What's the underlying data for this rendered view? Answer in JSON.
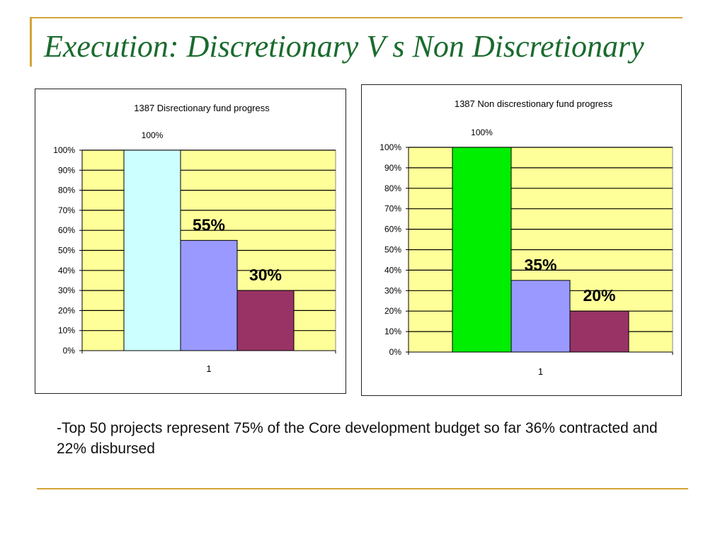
{
  "slide": {
    "title": "Execution: Discretionary V s Non Discretionary",
    "footnote": "-Top 50 projects represent 75% of the Core development budget so far 36% contracted and 22% disbursed"
  },
  "colors": {
    "accent_line": "#d4a437",
    "title_text": "#1a6b2e",
    "plot_background": "#ffff99"
  },
  "chart_data": [
    {
      "type": "bar",
      "title": "1387 Disrectionary fund progress",
      "categories": [
        "1"
      ],
      "ylim": [
        0,
        100
      ],
      "y_ticks": [
        "0%",
        "10%",
        "20%",
        "30%",
        "40%",
        "50%",
        "60%",
        "70%",
        "80%",
        "90%",
        "100%"
      ],
      "grid": true,
      "legend": "none",
      "series": [
        {
          "values": [
            100
          ],
          "color": "#ccffff",
          "label": "100%",
          "label_style": "small"
        },
        {
          "values": [
            55
          ],
          "color": "#9999ff",
          "label": "55%",
          "label_style": "large-bold"
        },
        {
          "values": [
            30
          ],
          "color": "#993366",
          "label": "30%",
          "label_style": "large-bold"
        }
      ]
    },
    {
      "type": "bar",
      "title": "1387 Non discrestionary fund progress",
      "categories": [
        "1"
      ],
      "ylim": [
        0,
        100
      ],
      "y_ticks": [
        "0%",
        "10%",
        "20%",
        "30%",
        "40%",
        "50%",
        "60%",
        "70%",
        "80%",
        "90%",
        "100%"
      ],
      "grid": true,
      "legend": "none",
      "series": [
        {
          "values": [
            100
          ],
          "color": "#00ee00",
          "label": "100%",
          "label_style": "small"
        },
        {
          "values": [
            35
          ],
          "color": "#9999ff",
          "label": "35%",
          "label_style": "large-bold"
        },
        {
          "values": [
            20
          ],
          "color": "#993366",
          "label": "20%",
          "label_style": "large-bold"
        }
      ]
    }
  ]
}
